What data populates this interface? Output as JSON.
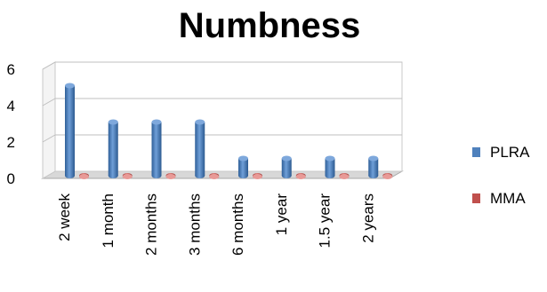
{
  "chart_data": {
    "type": "bar",
    "title": "Numbness",
    "categories": [
      "2 week",
      "1 month",
      "2 months",
      "3 months",
      "6 months",
      "1 year",
      "1.5 year",
      "2 years"
    ],
    "series": [
      {
        "name": "PLRA",
        "values": [
          5,
          3,
          3,
          3,
          1,
          1,
          1,
          1
        ],
        "color": "#4f81bd"
      },
      {
        "name": "MMA",
        "values": [
          0,
          0,
          0,
          0,
          0,
          0,
          0,
          0
        ],
        "color": "#c0504d"
      }
    ],
    "ylim": [
      0,
      6
    ],
    "yticks": [
      0,
      2,
      4,
      6
    ],
    "grid": true,
    "legend_position": "right",
    "style": "3d-cylinder"
  }
}
